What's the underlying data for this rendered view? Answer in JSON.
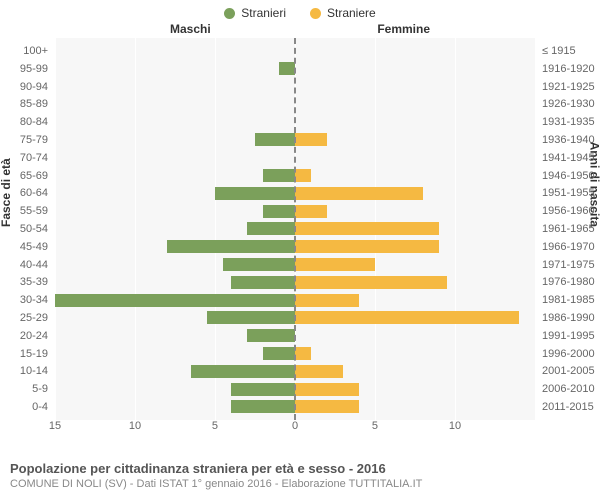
{
  "legend": {
    "male": {
      "label": "Stranieri",
      "color": "#7ba05b"
    },
    "female": {
      "label": "Straniere",
      "color": "#f5b942"
    }
  },
  "headers": {
    "left": "Maschi",
    "right": "Femmine"
  },
  "axes": {
    "yleft_title": "Fasce di età",
    "yright_title": "Anni di nascita",
    "xmax": 15,
    "xticks_left": [
      15,
      10,
      5,
      0
    ],
    "xticks_right": [
      5,
      10
    ],
    "grid_color": "#ffffff",
    "plot_bg": "#f7f7f7",
    "center_line_color": "#888888"
  },
  "rows": [
    {
      "age": "100+",
      "birth": "≤ 1915",
      "m": 0,
      "f": 0
    },
    {
      "age": "95-99",
      "birth": "1916-1920",
      "m": 1,
      "f": 0
    },
    {
      "age": "90-94",
      "birth": "1921-1925",
      "m": 0,
      "f": 0
    },
    {
      "age": "85-89",
      "birth": "1926-1930",
      "m": 0,
      "f": 0
    },
    {
      "age": "80-84",
      "birth": "1931-1935",
      "m": 0,
      "f": 0
    },
    {
      "age": "75-79",
      "birth": "1936-1940",
      "m": 2.5,
      "f": 2
    },
    {
      "age": "70-74",
      "birth": "1941-1945",
      "m": 0,
      "f": 0
    },
    {
      "age": "65-69",
      "birth": "1946-1950",
      "m": 2,
      "f": 1
    },
    {
      "age": "60-64",
      "birth": "1951-1955",
      "m": 5,
      "f": 8
    },
    {
      "age": "55-59",
      "birth": "1956-1960",
      "m": 2,
      "f": 2
    },
    {
      "age": "50-54",
      "birth": "1961-1965",
      "m": 3,
      "f": 9
    },
    {
      "age": "45-49",
      "birth": "1966-1970",
      "m": 8,
      "f": 9
    },
    {
      "age": "40-44",
      "birth": "1971-1975",
      "m": 4.5,
      "f": 5
    },
    {
      "age": "35-39",
      "birth": "1976-1980",
      "m": 4,
      "f": 9.5
    },
    {
      "age": "30-34",
      "birth": "1981-1985",
      "m": 15.5,
      "f": 4
    },
    {
      "age": "25-29",
      "birth": "1986-1990",
      "m": 5.5,
      "f": 14
    },
    {
      "age": "20-24",
      "birth": "1991-1995",
      "m": 3,
      "f": 0
    },
    {
      "age": "15-19",
      "birth": "1996-2000",
      "m": 2,
      "f": 1
    },
    {
      "age": "10-14",
      "birth": "2001-2005",
      "m": 6.5,
      "f": 3
    },
    {
      "age": "5-9",
      "birth": "2006-2010",
      "m": 4,
      "f": 4
    },
    {
      "age": "0-4",
      "birth": "2011-2015",
      "m": 4,
      "f": 4
    }
  ],
  "caption": {
    "title": "Popolazione per cittadinanza straniera per età e sesso - 2016",
    "sub": "COMUNE DI NOLI (SV) - Dati ISTAT 1° gennaio 2016 - Elaborazione TUTTITALIA.IT"
  }
}
